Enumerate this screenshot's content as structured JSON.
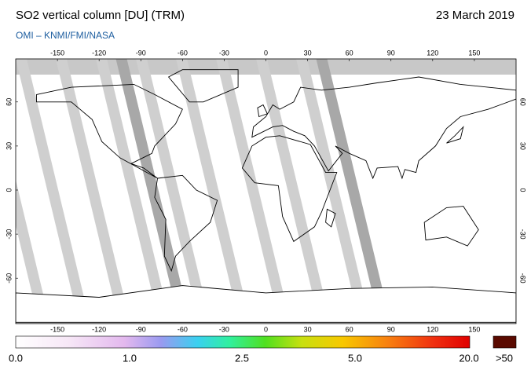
{
  "header": {
    "title": "SO2 vertical column [DU] (TRM)",
    "date": "23 March 2019",
    "source": "OMI  –  KNMI/FMI/NASA"
  },
  "map": {
    "lon_ticks": [
      -150,
      -120,
      -90,
      -60,
      -30,
      0,
      30,
      60,
      90,
      120,
      150
    ],
    "lat_ticks": [
      60,
      30,
      0,
      -30,
      -60
    ]
  },
  "colorbar": {
    "labels": [
      "0.0",
      "1.0",
      "2.5",
      "5.0",
      "20.0",
      ">50"
    ]
  }
}
